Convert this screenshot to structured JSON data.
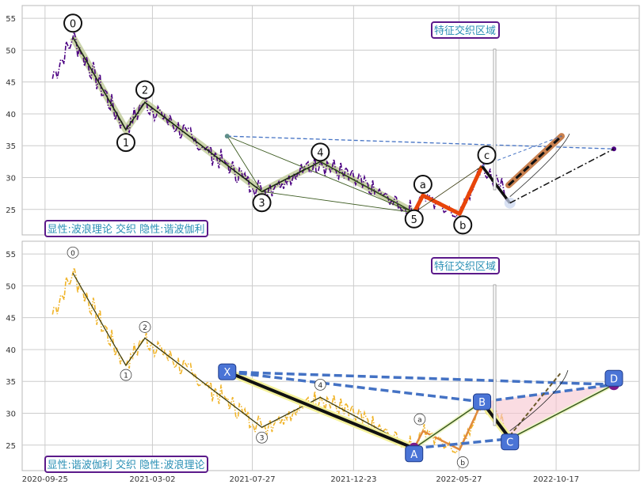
{
  "colors": {
    "grid": "#cccccc",
    "frame": "#b8b8b8",
    "price_top": "#4b0082",
    "price_bottom": "#f0b429",
    "accent_orange": "#e8450a",
    "copper": "#c8804f",
    "blue_dash": "#4472c4",
    "purple_box": "#5b1a8a",
    "teal_text": "#2a8fb5",
    "xabcd_fill": "#4a74d6"
  },
  "chart_data": [
    {
      "type": "line",
      "panel": "top",
      "ylim": [
        21,
        57
      ],
      "yticks": [
        "25",
        "30",
        "35",
        "40",
        "45",
        "50",
        "55"
      ],
      "grid": true,
      "annotation_top": "特征交织区域",
      "annotation_bottom": "显性:波浪理论 交织 隐性:谐波伽利",
      "wave_points": [
        {
          "label": "0",
          "date": "2020-11-05",
          "value": 52.0
        },
        {
          "label": "1",
          "date": "2021-01-22",
          "value": 37.5
        },
        {
          "label": "2",
          "date": "2021-02-19",
          "value": 41.8
        },
        {
          "label": "3",
          "date": "2021-08-10",
          "value": 27.8
        },
        {
          "label": "4",
          "date": "2021-11-04",
          "value": 32.5
        },
        {
          "label": "5",
          "date": "2022-03-22",
          "value": 24.5
        },
        {
          "label": "a",
          "date": "2022-04-04",
          "value": 27.2
        },
        {
          "label": "b",
          "date": "2022-05-28",
          "value": 24.3
        },
        {
          "label": "c",
          "date": "2022-06-30",
          "value": 31.8
        }
      ],
      "projection": [
        {
          "date": "2022-08-08",
          "value": 28.8
        },
        {
          "date": "2022-10-25",
          "value": 36.5
        }
      ]
    },
    {
      "type": "line",
      "panel": "bottom",
      "ylim": [
        21,
        57
      ],
      "yticks": [
        "25",
        "30",
        "35",
        "40",
        "45",
        "50",
        "55"
      ],
      "xticks": [
        "2020-09-25",
        "2021-03-02",
        "2021-07-27",
        "2021-12-23",
        "2022-05-27",
        "2022-10-17"
      ],
      "grid": true,
      "annotation_top": "特征交织区域",
      "annotation_bottom": "显性:谐波伽利 交织 隐性:波浪理论",
      "wave_labels": [
        "0",
        "1",
        "2",
        "3",
        "4",
        "a",
        "b"
      ],
      "xabcd": [
        {
          "label": "X",
          "date": "2021-06-20",
          "value": 36.5
        },
        {
          "label": "A",
          "date": "2022-03-22",
          "value": 24.5
        },
        {
          "label": "B",
          "date": "2022-06-30",
          "value": 31.8
        },
        {
          "label": "C",
          "date": "2022-08-10",
          "value": 26.0
        },
        {
          "label": "D",
          "date": "2023-01-10",
          "value": 34.5
        }
      ]
    }
  ]
}
